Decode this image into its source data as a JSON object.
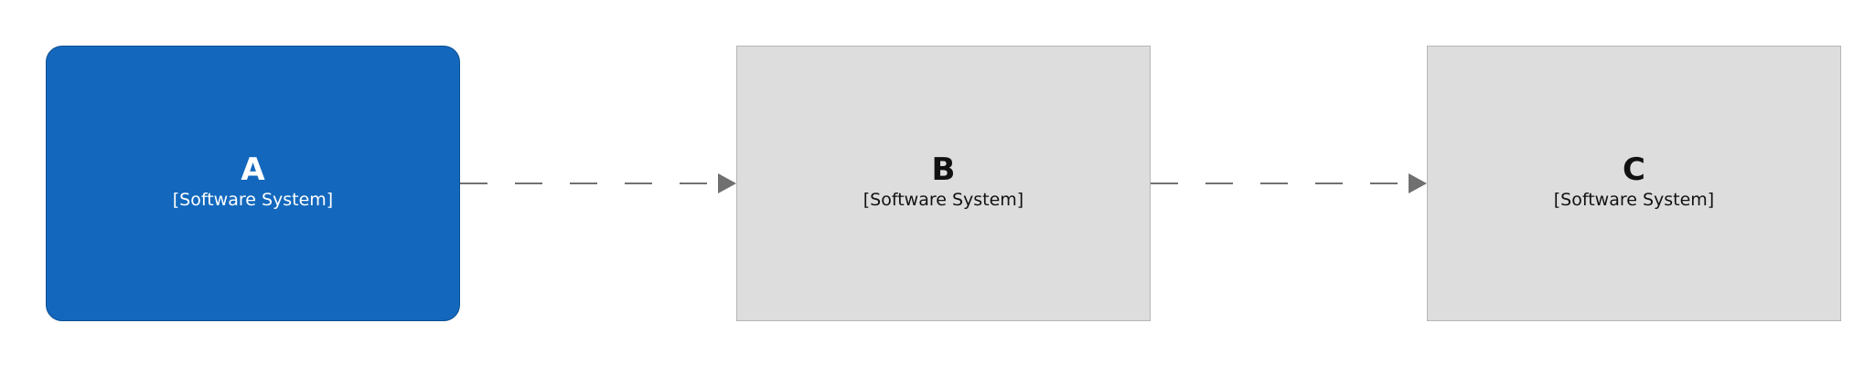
{
  "diagram": {
    "nodes": [
      {
        "id": "a",
        "title": "A",
        "type": "[Software System]",
        "fill": "#1368bd",
        "text_color": "#ffffff"
      },
      {
        "id": "b",
        "title": "B",
        "type": "[Software System]",
        "fill": "#dddddd",
        "text_color": "#111111"
      },
      {
        "id": "c",
        "title": "C",
        "type": "[Software System]",
        "fill": "#dddddd",
        "text_color": "#111111"
      }
    ],
    "edges": [
      {
        "from": "a",
        "to": "b",
        "style": "dashed",
        "color": "#707070"
      },
      {
        "from": "b",
        "to": "c",
        "style": "dashed",
        "color": "#707070"
      }
    ]
  }
}
